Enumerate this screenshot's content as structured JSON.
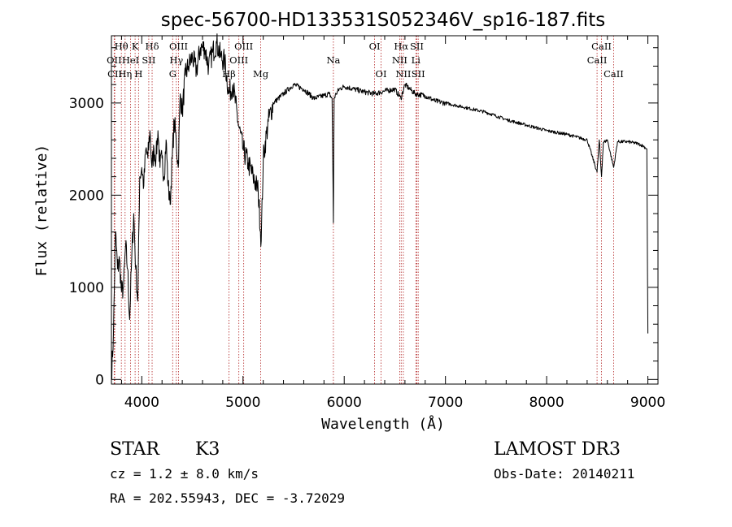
{
  "chart_data": {
    "type": "line",
    "title": "spec-56700-HD133531S052346V_sp16-187.fits",
    "xlabel": "Wavelength (Å)",
    "ylabel": "Flux (relative)",
    "xlim": [
      3700,
      9100
    ],
    "ylim": [
      -50,
      3730
    ],
    "xticks": [
      4000,
      5000,
      6000,
      7000,
      8000,
      9000
    ],
    "yticks": [
      0,
      1000,
      2000,
      3000
    ],
    "grid": false,
    "series": [
      {
        "x": [
          3700,
          3720,
          3740,
          3760,
          3780,
          3800,
          3820,
          3840,
          3860,
          3880,
          3900,
          3920,
          3940,
          3960,
          3980,
          4000,
          4020,
          4040,
          4060,
          4080,
          4100,
          4120,
          4140,
          4160,
          4180,
          4200,
          4220,
          4240,
          4260,
          4280,
          4300,
          4320,
          4340,
          4360,
          4380,
          4400,
          4430,
          4460,
          4500,
          4540,
          4580,
          4620,
          4660,
          4700,
          4740,
          4780,
          4820,
          4860,
          4900,
          4950,
          5000,
          5050,
          5100,
          5150,
          5180,
          5200,
          5250,
          5300,
          5400,
          5500,
          5600,
          5700,
          5800,
          5850,
          5880,
          5893,
          5900,
          5920,
          5950,
          6000,
          6100,
          6200,
          6300,
          6400,
          6500,
          6560,
          6600,
          6650,
          6700,
          6800,
          6900,
          7000,
          7200,
          7400,
          7600,
          7800,
          8000,
          8200,
          8400,
          8498,
          8520,
          8542,
          8560,
          8600,
          8662,
          8700,
          8800,
          8900,
          8960,
          8990,
          9000
        ],
        "values": [
          0,
          500,
          1600,
          1200,
          1300,
          950,
          1000,
          1450,
          1200,
          650,
          1300,
          1800,
          1200,
          850,
          2200,
          2300,
          2100,
          2500,
          2400,
          2700,
          2300,
          2500,
          2400,
          2700,
          2300,
          2400,
          2200,
          2600,
          2100,
          1900,
          2400,
          2800,
          2600,
          2300,
          3100,
          2900,
          3300,
          3400,
          3500,
          3350,
          3600,
          3600,
          3400,
          3550,
          3650,
          3500,
          3450,
          3100,
          3200,
          2800,
          2500,
          2350,
          2200,
          2050,
          1500,
          2400,
          2800,
          3000,
          3100,
          3200,
          3150,
          3050,
          3080,
          3100,
          3050,
          1700,
          3050,
          3100,
          3150,
          3180,
          3150,
          3120,
          3100,
          3130,
          3150,
          3050,
          3200,
          3150,
          3100,
          3080,
          3020,
          3000,
          2950,
          2900,
          2820,
          2760,
          2700,
          2660,
          2600,
          2250,
          2600,
          2200,
          2570,
          2600,
          2300,
          2580,
          2580,
          2560,
          2530,
          2500,
          500
        ]
      }
    ],
    "spectral_lines": [
      {
        "label": "Hθ",
        "wl": 3798,
        "row": 1
      },
      {
        "label": "OII",
        "wl": 3727,
        "row": 2
      },
      {
        "label": "CII",
        "wl": 3733,
        "row": 3
      },
      {
        "label": "K",
        "wl": 3934,
        "row": 1
      },
      {
        "label": "HeI",
        "wl": 3889,
        "row": 2
      },
      {
        "label": "Hη",
        "wl": 3835,
        "row": 3
      },
      {
        "label": "Hδ",
        "wl": 4102,
        "row": 1
      },
      {
        "label": "SII",
        "wl": 4069,
        "row": 2
      },
      {
        "label": "H",
        "wl": 3968,
        "row": 3
      },
      {
        "label": "OIII",
        "wl": 4363,
        "row": 1
      },
      {
        "label": "Hγ",
        "wl": 4341,
        "row": 2
      },
      {
        "label": "G",
        "wl": 4305,
        "row": 3
      },
      {
        "label": "OIII",
        "wl": 5007,
        "row": 1
      },
      {
        "label": "OIII",
        "wl": 4959,
        "row": 2
      },
      {
        "label": "Hβ",
        "wl": 4861,
        "row": 3
      },
      {
        "label": "Mg",
        "wl": 5175,
        "row": 3
      },
      {
        "label": "Na",
        "wl": 5893,
        "row": 2
      },
      {
        "label": "OI",
        "wl": 6300,
        "row": 1
      },
      {
        "label": "OI",
        "wl": 6364,
        "row": 3
      },
      {
        "label": "Hα",
        "wl": 6563,
        "row": 1
      },
      {
        "label": "SII",
        "wl": 6717,
        "row": 1
      },
      {
        "label": "NII",
        "wl": 6548,
        "row": 2
      },
      {
        "label": "Li",
        "wl": 6708,
        "row": 2
      },
      {
        "label": "NII",
        "wl": 6584,
        "row": 3
      },
      {
        "label": "SII",
        "wl": 6731,
        "row": 3
      },
      {
        "label": "CaII",
        "wl": 8542,
        "row": 1
      },
      {
        "label": "CaII",
        "wl": 8498,
        "row": 2
      },
      {
        "label": "CaII",
        "wl": 8662,
        "row": 3
      }
    ]
  },
  "info": {
    "object_class": "STAR",
    "subclass": "K3",
    "survey": "LAMOST DR3",
    "cz": "cz = 1.2 ± 8.0 km/s",
    "obs_date": "Obs-Date: 20140211",
    "radec": "RA = 202.55943, DEC =  -3.72029"
  },
  "colors": {
    "line_marker": "#b22222",
    "spectrum": "#000000"
  }
}
